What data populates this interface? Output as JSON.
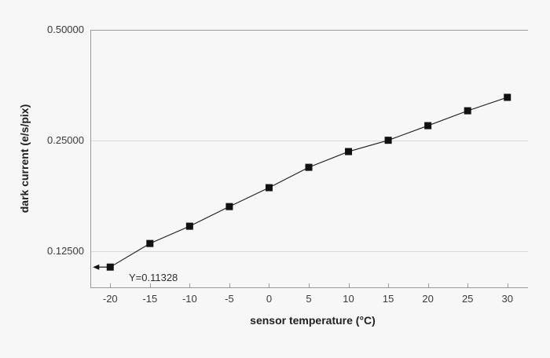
{
  "chart_data": {
    "type": "line",
    "title": "",
    "xlabel": "sensor temperature (°C)",
    "ylabel": "dark current (e/s/pix)",
    "x": [
      -20,
      -15,
      -10,
      -5,
      0,
      5,
      10,
      15,
      20,
      25,
      30
    ],
    "values": [
      0.11328,
      0.1313,
      0.1463,
      0.1654,
      0.1862,
      0.2115,
      0.2334,
      0.2505,
      0.2745,
      0.3013,
      0.3277
    ],
    "x_ticks": [
      -20,
      -15,
      -10,
      -5,
      0,
      5,
      10,
      15,
      20,
      25,
      30
    ],
    "x_tick_labels": [
      "-20",
      "-15",
      "-10",
      "-5",
      "0",
      "5",
      "10",
      "15",
      "20",
      "25",
      "30"
    ],
    "y_ticks": [
      0.5,
      0.25,
      0.125
    ],
    "y_tick_labels": [
      "0.50000",
      "0.25000",
      "0.12500"
    ],
    "y_scale": "log2",
    "xlim": [
      -22.5,
      32.6
    ],
    "ylim": [
      0.0993,
      0.5
    ],
    "grid": true,
    "legend": false,
    "marker": "square",
    "annotation": {
      "text": "Y=0.11328",
      "arrow": "left",
      "point_index": 0
    },
    "colors": {
      "background": "#f7f7f7",
      "line": "#1c1c1c",
      "marker": "#111111",
      "grid": "#d9d9d9",
      "axis": "#9a9a9a",
      "tick_text": "#3a3a3a",
      "title_text": "#1f1f1f"
    }
  }
}
